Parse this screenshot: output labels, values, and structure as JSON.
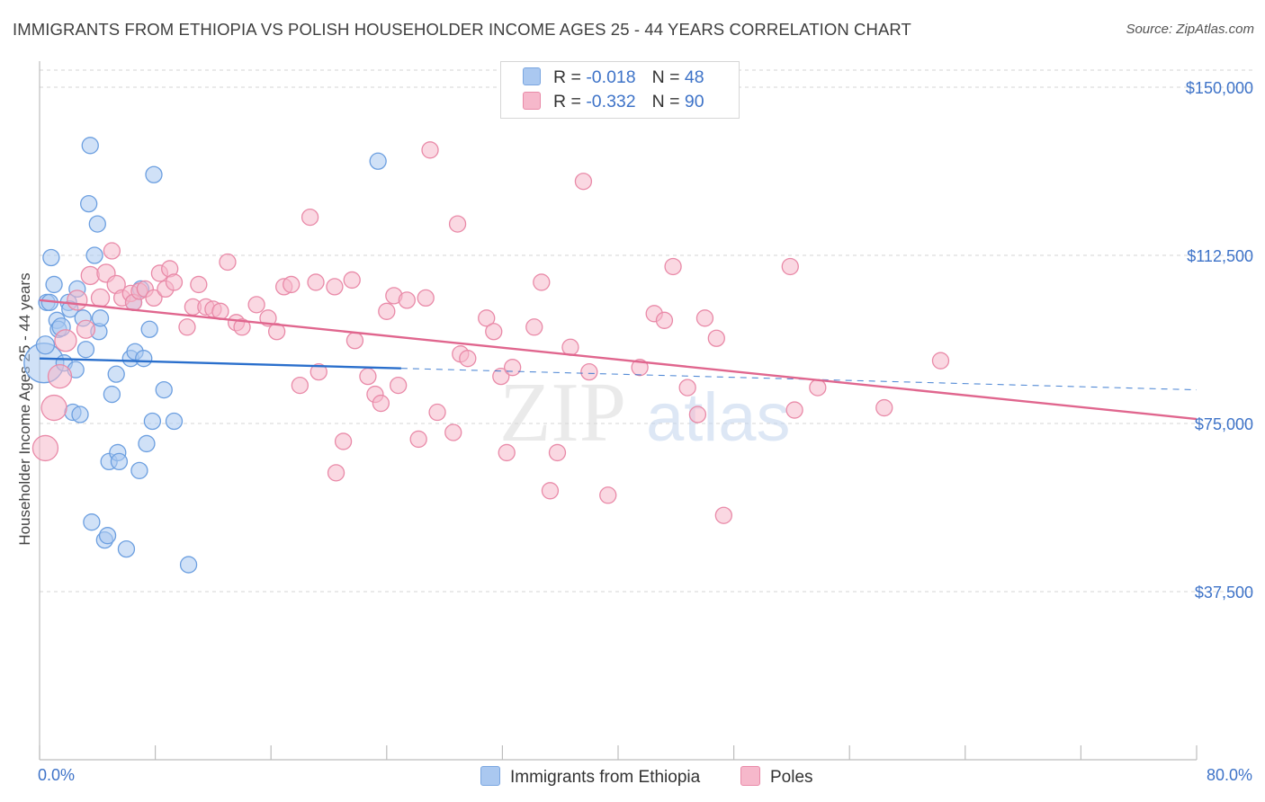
{
  "title": "IMMIGRANTS FROM ETHIOPIA VS POLISH HOUSEHOLDER INCOME AGES 25 - 44 YEARS CORRELATION CHART",
  "source": "Source: ZipAtlas.com",
  "watermark": {
    "zip": "ZIP",
    "atlas": "atlas"
  },
  "legend": {
    "rows": [
      {
        "r_label": "R = ",
        "r_value": "-0.018",
        "n_label": "N = ",
        "n_value": "48",
        "color": "#aac8f0",
        "border": "#7aa6e0"
      },
      {
        "r_label": "R = ",
        "r_value": "-0.332",
        "n_label": "N = ",
        "n_value": "90",
        "color": "#f6b8cb",
        "border": "#e98aa8"
      }
    ]
  },
  "chart_data": {
    "type": "scatter",
    "xlabel": "",
    "ylabel": "Householder Income Ages 25 - 44 years",
    "xlim": [
      0,
      80
    ],
    "ylim": [
      0,
      155000
    ],
    "x_tick_labels": [
      "0.0%",
      "80.0%"
    ],
    "y_ticks": [
      37500,
      75000,
      112500,
      150000
    ],
    "y_tick_labels": [
      "$37,500",
      "$75,000",
      "$112,500",
      "$150,000"
    ],
    "grid": true,
    "legend_position": "bottom",
    "series": [
      {
        "name": "Immigrants from Ethiopia",
        "color": "#aac8f0",
        "stroke": "#6c9fe0",
        "line_color": "#2a6fcc",
        "trend": {
          "x0": 0,
          "y0": 89500,
          "x1": 25,
          "y1": 87300,
          "x_ext": 80,
          "y_ext": 82500
        },
        "points": [
          [
            0.3,
            88500,
            22
          ],
          [
            0.4,
            92500,
            10
          ],
          [
            0.5,
            102000,
            9
          ],
          [
            0.7,
            102000,
            9
          ],
          [
            0.8,
            112000,
            9
          ],
          [
            1.0,
            106000,
            9
          ],
          [
            1.2,
            98000,
            9
          ],
          [
            1.3,
            96000,
            9
          ],
          [
            1.5,
            96500,
            10
          ],
          [
            1.7,
            88500,
            9
          ],
          [
            2.0,
            102000,
            9
          ],
          [
            2.1,
            100500,
            9
          ],
          [
            2.3,
            77500,
            9
          ],
          [
            2.5,
            87000,
            9
          ],
          [
            2.6,
            105000,
            9
          ],
          [
            2.8,
            77000,
            9
          ],
          [
            3.0,
            98500,
            9
          ],
          [
            3.2,
            91500,
            9
          ],
          [
            3.4,
            124000,
            9
          ],
          [
            3.5,
            137000,
            9
          ],
          [
            3.6,
            53000,
            9
          ],
          [
            3.8,
            112500,
            9
          ],
          [
            4.0,
            119500,
            9
          ],
          [
            4.1,
            95500,
            9
          ],
          [
            4.2,
            98500,
            9
          ],
          [
            4.5,
            49000,
            9
          ],
          [
            4.7,
            50000,
            9
          ],
          [
            4.8,
            66500,
            9
          ],
          [
            5.0,
            81500,
            9
          ],
          [
            5.3,
            86000,
            9
          ],
          [
            5.4,
            68500,
            9
          ],
          [
            5.5,
            66500,
            9
          ],
          [
            6.0,
            47000,
            9
          ],
          [
            6.3,
            89500,
            9
          ],
          [
            6.5,
            102000,
            9
          ],
          [
            6.6,
            91000,
            9
          ],
          [
            6.9,
            64500,
            9
          ],
          [
            7.0,
            105000,
            9
          ],
          [
            7.2,
            89500,
            9
          ],
          [
            7.4,
            70500,
            9
          ],
          [
            7.6,
            96000,
            9
          ],
          [
            7.8,
            75500,
            9
          ],
          [
            7.9,
            130500,
            9
          ],
          [
            8.6,
            82500,
            9
          ],
          [
            9.3,
            75500,
            9
          ],
          [
            10.3,
            43500,
            9
          ],
          [
            23.4,
            133500,
            9
          ]
        ]
      },
      {
        "name": "Poles",
        "color": "#f6b8cb",
        "stroke": "#e98aa8",
        "line_color": "#e0668e",
        "trend": {
          "x0": 0,
          "y0": 102500,
          "x1": 80,
          "y1": 76000
        },
        "points": [
          [
            0.4,
            69500,
            14
          ],
          [
            1.0,
            78500,
            14
          ],
          [
            1.4,
            85500,
            13
          ],
          [
            1.8,
            93500,
            12
          ],
          [
            2.6,
            102500,
            11
          ],
          [
            3.2,
            96000,
            10
          ],
          [
            3.5,
            108000,
            10
          ],
          [
            4.2,
            103000,
            10
          ],
          [
            4.6,
            108500,
            10
          ],
          [
            5.0,
            113500,
            9
          ],
          [
            5.3,
            106000,
            10
          ],
          [
            5.7,
            103000,
            9
          ],
          [
            6.3,
            104000,
            9
          ],
          [
            6.5,
            102000,
            9
          ],
          [
            6.9,
            104500,
            9
          ],
          [
            7.3,
            105000,
            9
          ],
          [
            7.9,
            103000,
            9
          ],
          [
            8.3,
            108500,
            9
          ],
          [
            8.7,
            105000,
            9
          ],
          [
            9.0,
            109500,
            9
          ],
          [
            9.3,
            106500,
            9
          ],
          [
            10.2,
            96500,
            9
          ],
          [
            10.6,
            101000,
            9
          ],
          [
            11.0,
            106000,
            9
          ],
          [
            11.5,
            101000,
            9
          ],
          [
            12.0,
            100500,
            9
          ],
          [
            12.5,
            100000,
            9
          ],
          [
            13.0,
            111000,
            9
          ],
          [
            13.6,
            97500,
            9
          ],
          [
            14.0,
            96500,
            9
          ],
          [
            15.0,
            101500,
            9
          ],
          [
            15.8,
            98500,
            9
          ],
          [
            16.4,
            95500,
            9
          ],
          [
            16.9,
            105500,
            9
          ],
          [
            17.4,
            106000,
            9
          ],
          [
            18.0,
            83500,
            9
          ],
          [
            18.7,
            121000,
            9
          ],
          [
            19.1,
            106500,
            9
          ],
          [
            19.3,
            86500,
            9
          ],
          [
            20.4,
            105500,
            9
          ],
          [
            20.5,
            64000,
            9
          ],
          [
            21.0,
            71000,
            9
          ],
          [
            21.6,
            107000,
            9
          ],
          [
            21.8,
            93500,
            9
          ],
          [
            22.7,
            85500,
            9
          ],
          [
            23.2,
            81500,
            9
          ],
          [
            23.6,
            79500,
            9
          ],
          [
            24.0,
            100000,
            9
          ],
          [
            24.5,
            103500,
            9
          ],
          [
            24.8,
            83500,
            9
          ],
          [
            25.4,
            102500,
            9
          ],
          [
            26.2,
            71500,
            9
          ],
          [
            26.7,
            103000,
            9
          ],
          [
            27.0,
            136000,
            9
          ],
          [
            27.5,
            77500,
            9
          ],
          [
            28.6,
            73000,
            9
          ],
          [
            28.9,
            119500,
            9
          ],
          [
            29.1,
            90500,
            9
          ],
          [
            29.6,
            89500,
            9
          ],
          [
            30.9,
            98500,
            9
          ],
          [
            31.4,
            95500,
            9
          ],
          [
            31.9,
            85500,
            9
          ],
          [
            32.3,
            68500,
            9
          ],
          [
            32.7,
            87500,
            9
          ],
          [
            34.2,
            96500,
            9
          ],
          [
            34.7,
            106500,
            9
          ],
          [
            35.3,
            60000,
            9
          ],
          [
            35.8,
            68500,
            9
          ],
          [
            36.7,
            92000,
            9
          ],
          [
            37.6,
            129000,
            9
          ],
          [
            38.0,
            86500,
            9
          ],
          [
            39.3,
            59000,
            9
          ],
          [
            41.5,
            87500,
            9
          ],
          [
            42.5,
            99500,
            9
          ],
          [
            43.2,
            98000,
            9
          ],
          [
            43.8,
            110000,
            9
          ],
          [
            44.8,
            83000,
            9
          ],
          [
            45.5,
            77000,
            9
          ],
          [
            46.0,
            98500,
            9
          ],
          [
            46.8,
            94000,
            9
          ],
          [
            47.3,
            54500,
            9
          ],
          [
            51.9,
            110000,
            9
          ],
          [
            52.2,
            78000,
            9
          ],
          [
            53.8,
            83000,
            9
          ],
          [
            58.4,
            78500,
            9
          ],
          [
            62.3,
            89000,
            9
          ]
        ]
      }
    ]
  }
}
